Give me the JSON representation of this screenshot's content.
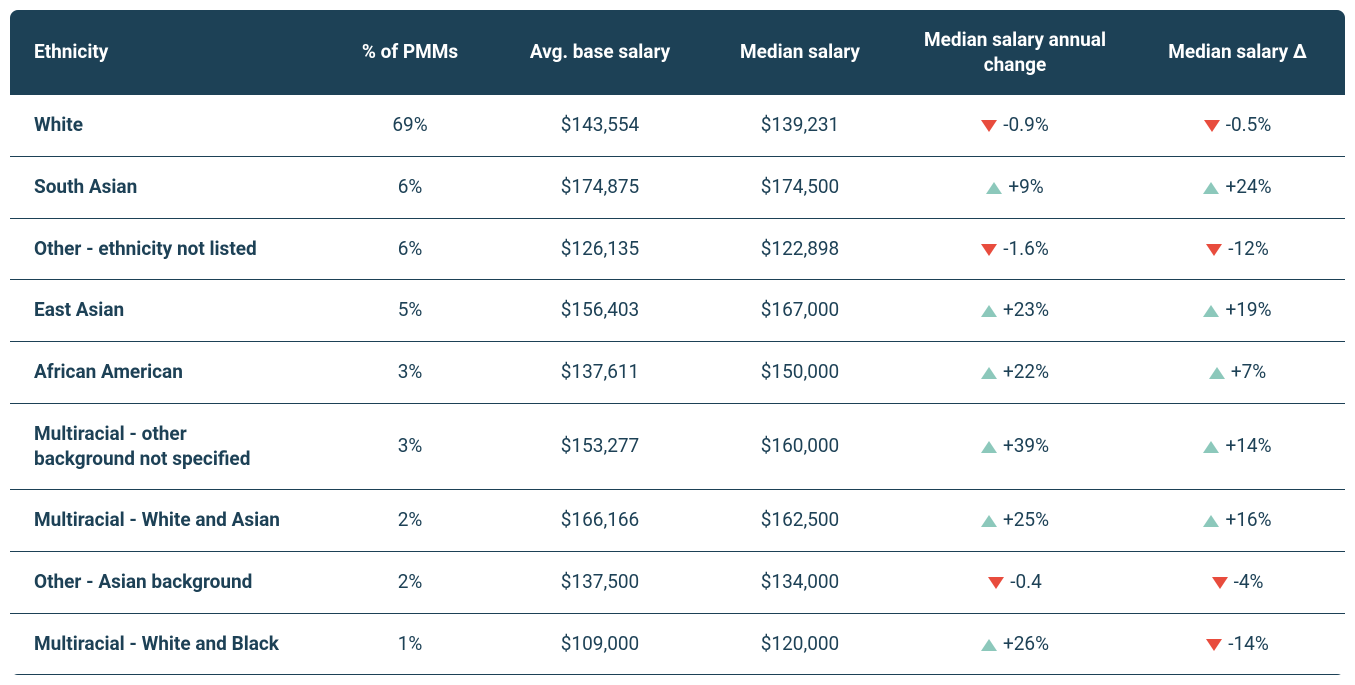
{
  "table": {
    "type": "table",
    "header_bg_color": "#1d4156",
    "header_text_color": "#ffffff",
    "text_color": "#1d4156",
    "border_color": "#1d4156",
    "background_color": "#ffffff",
    "up_triangle_color": "#8cc8bb",
    "down_triangle_color": "#e84c3d",
    "header_fontsize": 19,
    "body_fontsize": 19,
    "columns": [
      "Ethnicity",
      "% of PMMs",
      "Avg. base salary",
      "Median salary",
      "Median salary annual change",
      "Median salary Δ"
    ],
    "rows": [
      {
        "ethnicity": "White",
        "pct_pmms": "69%",
        "avg_base_salary": "$143,554",
        "median_salary": "$139,231",
        "annual_change": {
          "direction": "down",
          "value": "-0.9%"
        },
        "median_delta": {
          "direction": "down",
          "value": "-0.5%"
        }
      },
      {
        "ethnicity": "South Asian",
        "pct_pmms": "6%",
        "avg_base_salary": "$174,875",
        "median_salary": "$174,500",
        "annual_change": {
          "direction": "up",
          "value": "+9%"
        },
        "median_delta": {
          "direction": "up",
          "value": "+24%"
        }
      },
      {
        "ethnicity": "Other - ethnicity not listed",
        "pct_pmms": "6%",
        "avg_base_salary": "$126,135",
        "median_salary": "$122,898",
        "annual_change": {
          "direction": "down",
          "value": "-1.6%"
        },
        "median_delta": {
          "direction": "down",
          "value": "-12%"
        }
      },
      {
        "ethnicity": "East Asian",
        "pct_pmms": "5%",
        "avg_base_salary": "$156,403",
        "median_salary": "$167,000",
        "annual_change": {
          "direction": "up",
          "value": "+23%"
        },
        "median_delta": {
          "direction": "up",
          "value": "+19%"
        }
      },
      {
        "ethnicity": "African American",
        "pct_pmms": "3%",
        "avg_base_salary": "$137,611",
        "median_salary": "$150,000",
        "annual_change": {
          "direction": "up",
          "value": "+22%"
        },
        "median_delta": {
          "direction": "up",
          "value": "+7%"
        }
      },
      {
        "ethnicity": "Multiracial - other background not specified",
        "pct_pmms": "3%",
        "avg_base_salary": "$153,277",
        "median_salary": "$160,000",
        "annual_change": {
          "direction": "up",
          "value": "+39%"
        },
        "median_delta": {
          "direction": "up",
          "value": "+14%"
        }
      },
      {
        "ethnicity": "Multiracial - White and Asian",
        "pct_pmms": "2%",
        "avg_base_salary": "$166,166",
        "median_salary": "$162,500",
        "annual_change": {
          "direction": "up",
          "value": "+25%"
        },
        "median_delta": {
          "direction": "up",
          "value": "+16%"
        }
      },
      {
        "ethnicity": "Other - Asian background",
        "pct_pmms": "2%",
        "avg_base_salary": "$137,500",
        "median_salary": "$134,000",
        "annual_change": {
          "direction": "down",
          "value": "-0.4"
        },
        "median_delta": {
          "direction": "down",
          "value": "-4%"
        }
      },
      {
        "ethnicity": "Multiracial - White and Black",
        "pct_pmms": "1%",
        "avg_base_salary": "$109,000",
        "median_salary": "$120,000",
        "annual_change": {
          "direction": "up",
          "value": "+26%"
        },
        "median_delta": {
          "direction": "down",
          "value": "-14%"
        }
      }
    ]
  }
}
